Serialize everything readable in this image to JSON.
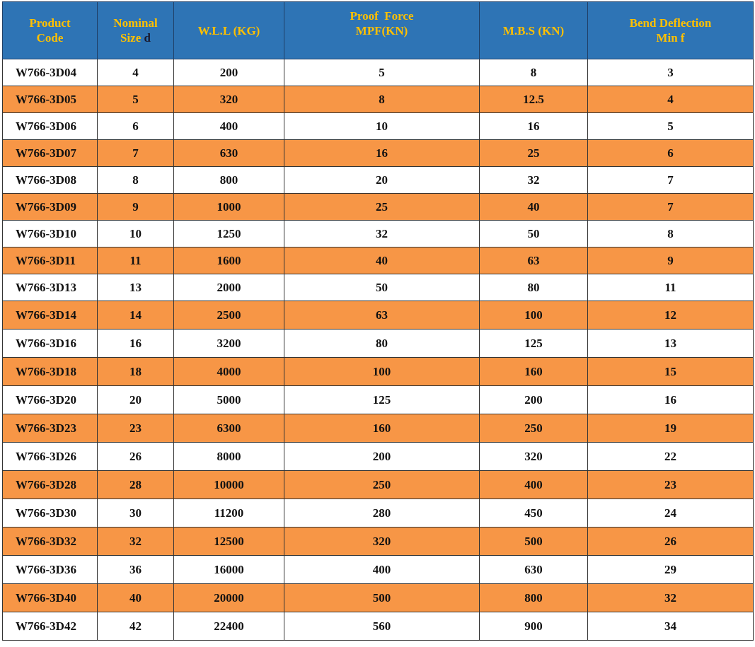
{
  "headers": [
    {
      "line1": "Product",
      "line2": "Code"
    },
    {
      "line1": "Nominal",
      "line2": "Size",
      "line2_suffix": "d"
    },
    {
      "line1": "W.L.L (KG)",
      "line2": ""
    },
    {
      "line1": "Proof  Force",
      "line2": "MPF(KN)"
    },
    {
      "line1": "M.B.S (KN)",
      "line2": ""
    },
    {
      "line1": "Bend Deflection",
      "line2": "Min f"
    }
  ],
  "rows": [
    [
      "W766-3D04",
      "4",
      "200",
      "5",
      "8",
      "3"
    ],
    [
      "W766-3D05",
      "5",
      "320",
      "8",
      "12.5",
      "4"
    ],
    [
      "W766-3D06",
      "6",
      "400",
      "10",
      "16",
      "5"
    ],
    [
      "W766-3D07",
      "7",
      "630",
      "16",
      "25",
      "6"
    ],
    [
      "W766-3D08",
      "8",
      "800",
      "20",
      "32",
      "7"
    ],
    [
      "W766-3D09",
      "9",
      "1000",
      "25",
      "40",
      "7"
    ],
    [
      "W766-3D10",
      "10",
      "1250",
      "32",
      "50",
      "8"
    ],
    [
      "W766-3D11",
      "11",
      "1600",
      "40",
      "63",
      "9"
    ],
    [
      "W766-3D13",
      "13",
      "2000",
      "50",
      "80",
      "11"
    ],
    [
      "W766-3D14",
      "14",
      "2500",
      "63",
      "100",
      "12"
    ],
    [
      "W766-3D16",
      "16",
      "3200",
      "80",
      "125",
      "13"
    ],
    [
      "W766-3D18",
      "18",
      "4000",
      "100",
      "160",
      "15"
    ],
    [
      "W766-3D20",
      "20",
      "5000",
      "125",
      "200",
      "16"
    ],
    [
      "W766-3D23",
      "23",
      "6300",
      "160",
      "250",
      "19"
    ],
    [
      "W766-3D26",
      "26",
      "8000",
      "200",
      "320",
      "22"
    ],
    [
      "W766-3D28",
      "28",
      "10000",
      "250",
      "400",
      "23"
    ],
    [
      "W766-3D30",
      "30",
      "11200",
      "280",
      "450",
      "24"
    ],
    [
      "W766-3D32",
      "32",
      "12500",
      "320",
      "500",
      "26"
    ],
    [
      "W766-3D36",
      "36",
      "16000",
      "400",
      "630",
      "29"
    ],
    [
      "W766-3D40",
      "40",
      "20000",
      "500",
      "800",
      "32"
    ],
    [
      "W766-3D42",
      "42",
      "22400",
      "560",
      "900",
      "34"
    ]
  ],
  "colors": {
    "header_bg": "#2e74b5",
    "header_text": "#ffc000",
    "stripe": "#f79646",
    "row_bg": "#ffffff"
  }
}
